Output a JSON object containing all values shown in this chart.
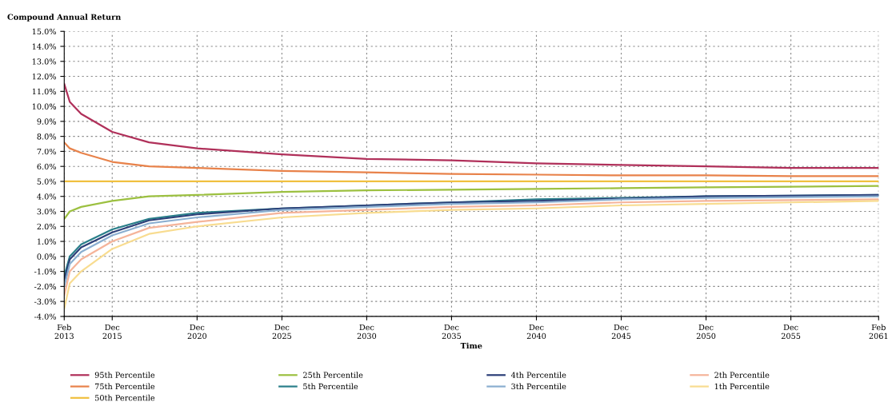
{
  "chart_data": {
    "type": "line",
    "ylabel": "Compound Annual Return",
    "xlabel": "Time",
    "x": [
      "2013-02",
      "2013-06",
      "2014-02",
      "2015-12",
      "2018-02",
      "2020-12",
      "2025-12",
      "2030-12",
      "2035-12",
      "2040-12",
      "2045-12",
      "2050-12",
      "2055-12",
      "2061-02"
    ],
    "series": [
      {
        "name": "95th Percentile",
        "color": "#b0305a",
        "values": [
          11.5,
          10.3,
          9.5,
          8.3,
          7.6,
          7.2,
          6.8,
          6.5,
          6.4,
          6.2,
          6.1,
          6.0,
          5.9,
          5.9
        ]
      },
      {
        "name": "75th Percentile",
        "color": "#e8824a",
        "values": [
          7.6,
          7.2,
          6.9,
          6.3,
          6.0,
          5.9,
          5.7,
          5.6,
          5.5,
          5.45,
          5.4,
          5.4,
          5.35,
          5.35
        ]
      },
      {
        "name": "50th Percentile",
        "color": "#f0c040",
        "values": [
          5.0,
          5.0,
          5.0,
          5.0,
          5.0,
          5.0,
          5.0,
          5.0,
          5.0,
          5.0,
          5.0,
          5.0,
          5.0,
          5.0
        ]
      },
      {
        "name": "25th Percentile",
        "color": "#9cc040",
        "values": [
          2.5,
          3.0,
          3.3,
          3.7,
          4.0,
          4.1,
          4.3,
          4.4,
          4.45,
          4.5,
          4.55,
          4.6,
          4.65,
          4.7
        ]
      },
      {
        "name": "5th Percentile",
        "color": "#2a7f8a",
        "values": [
          -1.3,
          0.0,
          0.8,
          1.8,
          2.5,
          2.9,
          3.2,
          3.4,
          3.6,
          3.8,
          3.9,
          4.0,
          4.05,
          4.1
        ]
      },
      {
        "name": "4th Percentile",
        "color": "#2c3f78",
        "values": [
          -1.6,
          -0.2,
          0.6,
          1.6,
          2.4,
          2.8,
          3.2,
          3.4,
          3.6,
          3.7,
          3.85,
          4.0,
          4.05,
          4.1
        ]
      },
      {
        "name": "3th Percentile",
        "color": "#8aaed0",
        "values": [
          -2.0,
          -0.5,
          0.3,
          1.4,
          2.2,
          2.6,
          3.1,
          3.3,
          3.5,
          3.6,
          3.8,
          3.9,
          3.95,
          4.0
        ]
      },
      {
        "name": "2th Percentile",
        "color": "#f5b49a",
        "values": [
          -2.6,
          -1.0,
          -0.2,
          1.0,
          1.9,
          2.3,
          2.9,
          3.1,
          3.3,
          3.4,
          3.6,
          3.7,
          3.75,
          3.8
        ]
      },
      {
        "name": "1th Percentile",
        "color": "#f8dc90",
        "values": [
          -3.5,
          -1.8,
          -1.0,
          0.5,
          1.5,
          2.0,
          2.6,
          2.9,
          3.1,
          3.2,
          3.4,
          3.5,
          3.6,
          3.7
        ]
      }
    ],
    "xlim": [
      "2013-02",
      "2061-02"
    ],
    "xticks": [
      {
        "value": "2013-02",
        "label": "Feb\n2013"
      },
      {
        "value": "2015-12",
        "label": "Dec\n2015"
      },
      {
        "value": "2020-12",
        "label": "Dec\n2020"
      },
      {
        "value": "2025-12",
        "label": "Dec\n2025"
      },
      {
        "value": "2030-12",
        "label": "Dec\n2030"
      },
      {
        "value": "2035-12",
        "label": "Dec\n2035"
      },
      {
        "value": "2040-12",
        "label": "Dec\n2040"
      },
      {
        "value": "2045-12",
        "label": "Dec\n2045"
      },
      {
        "value": "2050-12",
        "label": "Dec\n2050"
      },
      {
        "value": "2055-12",
        "label": "Dec\n2055"
      },
      {
        "value": "2061-02",
        "label": "Feb\n2061"
      }
    ],
    "ylim": [
      -4,
      15
    ],
    "yticks": [
      {
        "value": -4,
        "label": "-4.0%"
      },
      {
        "value": -3,
        "label": "-3.0%"
      },
      {
        "value": -2,
        "label": "-2.0%"
      },
      {
        "value": -1,
        "label": "-1.0%"
      },
      {
        "value": 0,
        "label": "0.0%"
      },
      {
        "value": 1,
        "label": "1.0%"
      },
      {
        "value": 2,
        "label": "2.0%"
      },
      {
        "value": 3,
        "label": "3.0%"
      },
      {
        "value": 4,
        "label": "4.0%"
      },
      {
        "value": 5,
        "label": "5.0%"
      },
      {
        "value": 6,
        "label": "6.0%"
      },
      {
        "value": 7,
        "label": "7.0%"
      },
      {
        "value": 8,
        "label": "8.0%"
      },
      {
        "value": 9,
        "label": "9.0%"
      },
      {
        "value": 10,
        "label": "10.0%"
      },
      {
        "value": 11,
        "label": "11.0%"
      },
      {
        "value": 12,
        "label": "12.0%"
      },
      {
        "value": 13,
        "label": "13.0%"
      },
      {
        "value": 14,
        "label": "14.0%"
      },
      {
        "value": 15,
        "label": "15.0%"
      }
    ],
    "grid": true,
    "legend": "bottom",
    "line_style": "solid",
    "marker": "none"
  }
}
